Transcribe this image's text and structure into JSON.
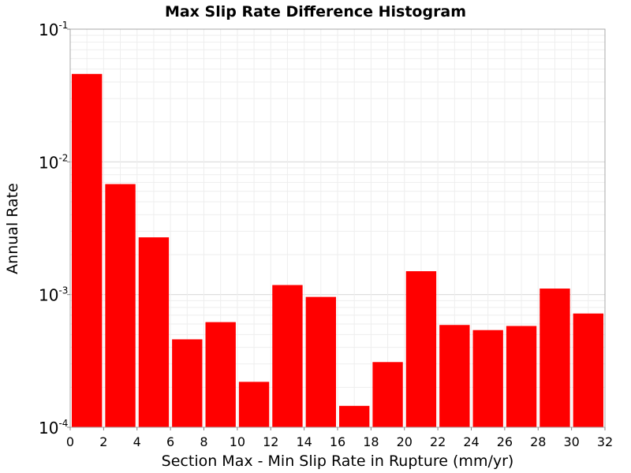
{
  "chart_data": {
    "type": "bar",
    "title": "Max Slip Rate Difference Histogram",
    "xlabel": "Section Max - Min Slip Rate in Rupture (mm/yr)",
    "ylabel": "Annual Rate",
    "xlim": [
      0,
      32
    ],
    "ylim": [
      0.0001,
      0.1
    ],
    "yscale": "log",
    "bin_width": 2,
    "x_ticks": [
      "0",
      "2",
      "4",
      "6",
      "8",
      "10",
      "12",
      "14",
      "16",
      "18",
      "20",
      "22",
      "24",
      "26",
      "28",
      "30",
      "32"
    ],
    "y_ticks": [
      {
        "base": "10",
        "exp": "-4"
      },
      {
        "base": "10",
        "exp": "-3"
      },
      {
        "base": "10",
        "exp": "-2"
      },
      {
        "base": "10",
        "exp": "-1"
      }
    ],
    "bins": [
      1,
      3,
      5,
      7,
      9,
      11,
      13,
      15,
      17,
      19,
      21,
      23,
      25,
      27,
      29,
      31
    ],
    "values": [
      0.046,
      0.0068,
      0.0027,
      0.00046,
      0.00062,
      0.00022,
      0.00118,
      0.00096,
      0.000145,
      0.00031,
      0.0015,
      0.00059,
      0.00054,
      0.00058,
      0.00111,
      0.00072
    ],
    "bar_color": "#ff0000",
    "grid": true
  }
}
